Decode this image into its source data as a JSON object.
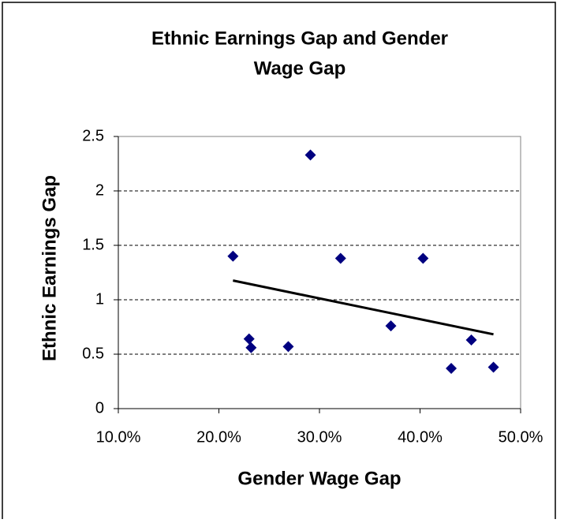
{
  "chart_data": {
    "type": "scatter",
    "title": [
      "Ethnic Earnings Gap and Gender",
      "Wage Gap"
    ],
    "x_label": "Gender Wage Gap",
    "y_label": "Ethnic Earnings Gap",
    "x": [
      21.4,
      23.0,
      23.2,
      26.9,
      29.1,
      32.1,
      37.1,
      40.3,
      43.1,
      45.1,
      47.3
    ],
    "values": [
      1.4,
      0.64,
      0.56,
      0.57,
      2.33,
      1.38,
      0.76,
      1.38,
      0.37,
      0.63,
      0.38
    ],
    "color": "#000080",
    "trendline": "linear",
    "xlim": [
      10,
      50
    ],
    "xticks": [
      {
        "value": 10,
        "label": "10.0%"
      },
      {
        "value": 20,
        "label": "20.0%"
      },
      {
        "value": 30,
        "label": "30.0%"
      },
      {
        "value": 40,
        "label": "40.0%"
      },
      {
        "value": 50,
        "label": "50.0%"
      }
    ],
    "ylim": [
      0,
      2.5
    ],
    "yticks": [
      0,
      0.5,
      1,
      1.5,
      2,
      2.5
    ],
    "grid": true
  }
}
